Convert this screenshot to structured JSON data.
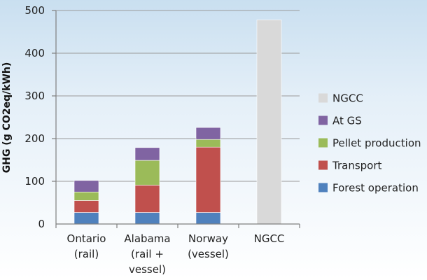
{
  "chart_data": {
    "type": "bar",
    "stacked": true,
    "ylabel": "GHG (g CO2eq/kWh)",
    "ylim": [
      0,
      500
    ],
    "yticks": [
      0,
      100,
      200,
      300,
      400,
      500
    ],
    "grid": true,
    "legend_position": "right",
    "categories": [
      [
        "Ontario",
        "(rail)"
      ],
      [
        "Alabama",
        "(rail +",
        "vessel)"
      ],
      [
        "Norway",
        "(vessel)"
      ],
      [
        "NGCC"
      ]
    ],
    "series": [
      {
        "name": "Forest operation",
        "color": "#4f81bd",
        "values": [
          27,
          27,
          27,
          0
        ]
      },
      {
        "name": "Transport",
        "color": "#c0504d",
        "values": [
          28,
          64,
          153,
          0
        ]
      },
      {
        "name": "Pellet production",
        "color": "#9bbb59",
        "values": [
          20,
          58,
          18,
          0
        ]
      },
      {
        "name": "At GS",
        "color": "#8064a2",
        "values": [
          27,
          30,
          28,
          0
        ]
      },
      {
        "name": "NGCC",
        "color": "#d9d9d9",
        "values": [
          0,
          0,
          0,
          478
        ]
      }
    ],
    "legend_order": [
      "NGCC",
      "At GS",
      "Pellet production",
      "Transport",
      "Forest operation"
    ]
  }
}
